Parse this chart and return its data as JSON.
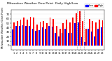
{
  "title": "Milwaukee Weather Dew Point  Daily High/Low",
  "title_fontsize": 3.2,
  "high_color": "#ff0000",
  "low_color": "#0000ff",
  "background_color": "#ffffff",
  "ylim": [
    -10,
    80
  ],
  "yticks": [
    0,
    10,
    20,
    30,
    40,
    50,
    60,
    70
  ],
  "ylabel_fontsize": 2.8,
  "xlabel_fontsize": 2.5,
  "days": [
    1,
    2,
    3,
    4,
    5,
    6,
    7,
    8,
    9,
    10,
    11,
    12,
    13,
    14,
    15,
    16,
    17,
    18,
    19,
    20,
    21,
    22,
    23,
    24,
    25,
    26,
    27,
    28
  ],
  "high_values": [
    52,
    55,
    58,
    62,
    58,
    64,
    63,
    47,
    53,
    55,
    50,
    62,
    60,
    44,
    38,
    50,
    58,
    52,
    62,
    72,
    76,
    55,
    38,
    60,
    55,
    52,
    58,
    56
  ],
  "low_values": [
    36,
    44,
    44,
    46,
    44,
    44,
    38,
    33,
    35,
    40,
    37,
    44,
    42,
    28,
    20,
    28,
    38,
    28,
    28,
    50,
    52,
    18,
    8,
    38,
    32,
    20,
    38,
    40
  ],
  "dashed_lines_at": [
    19.5,
    20.5,
    21.5
  ],
  "bar_width": 0.38
}
